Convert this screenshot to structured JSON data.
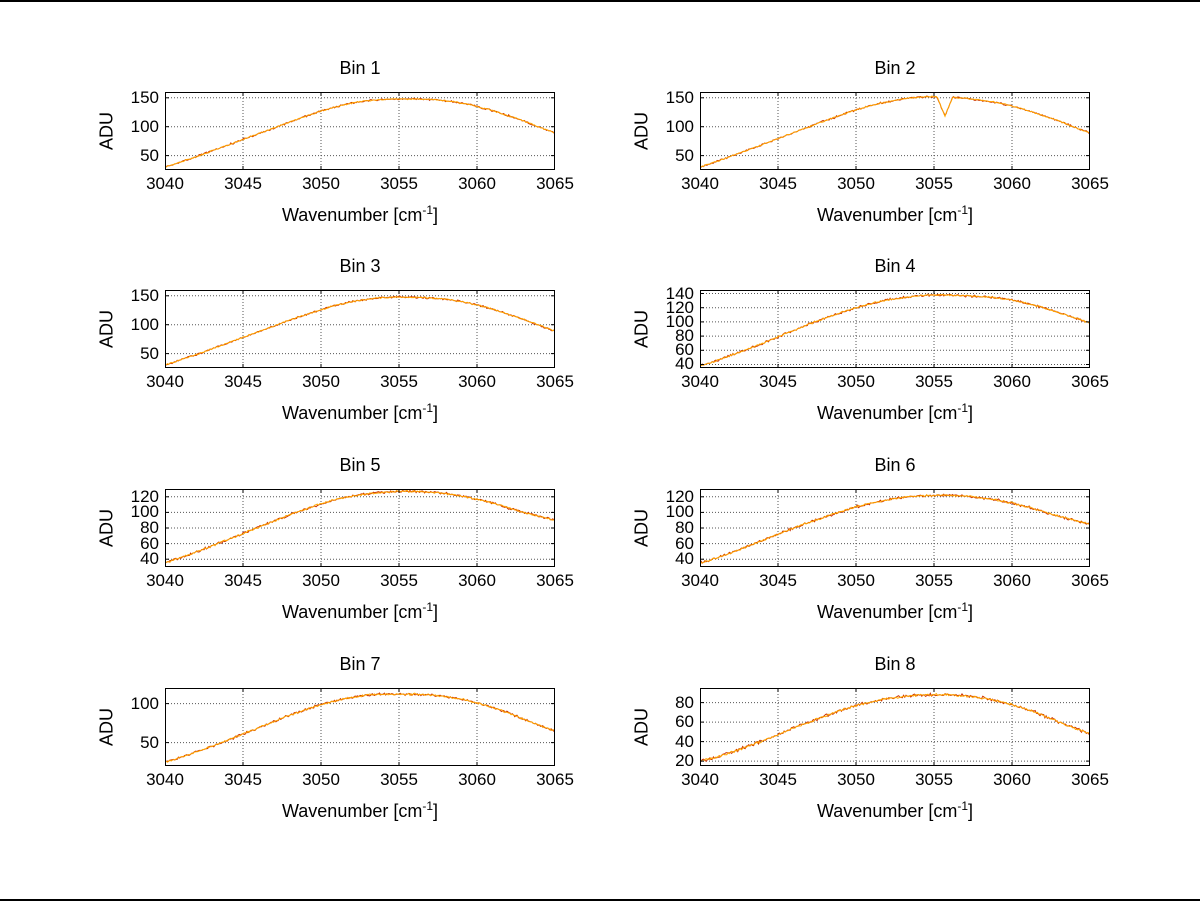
{
  "figure": {
    "background": "#ffffff",
    "border_color": "#000000",
    "grid_color": "#555555",
    "axis_color": "#000000",
    "series_colors": [
      "#cc3300",
      "#ffa500"
    ],
    "noise_amplitudes": [
      2.0,
      1.4
    ]
  },
  "labels": {
    "ylabel": "ADU",
    "xlabel_main": "Wavenumber [cm",
    "xlabel_sup": "-1",
    "xlabel_close": "]"
  },
  "axes_shared": {
    "x_start": 3040,
    "x_step": 1,
    "xlim": [
      3040,
      3065
    ],
    "xticks": [
      3040,
      3045,
      3050,
      3055,
      3060,
      3065
    ],
    "grid": true
  },
  "chart_data": [
    {
      "type": "line",
      "title": "Bin 1",
      "ylim": [
        25,
        160
      ],
      "yticks": [
        50,
        100,
        150
      ],
      "values": [
        30,
        39,
        48,
        58,
        68,
        78,
        88,
        98,
        108,
        118,
        127,
        135,
        141,
        145,
        147,
        148,
        148,
        147,
        145,
        141,
        135,
        128,
        119,
        110,
        99,
        89
      ]
    },
    {
      "type": "line",
      "title": "Bin 2",
      "ylim": [
        25,
        160
      ],
      "yticks": [
        50,
        100,
        150
      ],
      "dip": {
        "x": 3055.7,
        "value": 118,
        "width": 0.5
      },
      "values": [
        30,
        39,
        49,
        59,
        69,
        79,
        90,
        100,
        110,
        120,
        129,
        137,
        143,
        148,
        151,
        152,
        151,
        149,
        146,
        142,
        136,
        128,
        119,
        110,
        99,
        89
      ]
    },
    {
      "type": "line",
      "title": "Bin 3",
      "ylim": [
        25,
        160
      ],
      "yticks": [
        50,
        100,
        150
      ],
      "values": [
        30,
        39,
        48,
        58,
        68,
        78,
        88,
        98,
        108,
        117,
        126,
        134,
        140,
        144,
        147,
        148,
        147,
        146,
        144,
        140,
        134,
        127,
        118,
        109,
        99,
        89
      ]
    },
    {
      "type": "line",
      "title": "Bin 4",
      "ylim": [
        35,
        145
      ],
      "yticks": [
        40,
        60,
        80,
        100,
        120,
        140
      ],
      "values": [
        38,
        45,
        53,
        61,
        70,
        79,
        88,
        97,
        105,
        113,
        120,
        126,
        131,
        134,
        137,
        138,
        138,
        137,
        136,
        134,
        131,
        126,
        120,
        113,
        106,
        98
      ]
    },
    {
      "type": "line",
      "title": "Bin 5",
      "ylim": [
        30,
        130
      ],
      "yticks": [
        40,
        60,
        80,
        100,
        120
      ],
      "values": [
        35,
        42,
        49,
        57,
        65,
        73,
        81,
        89,
        97,
        104,
        111,
        117,
        121,
        124,
        126,
        127,
        127,
        126,
        124,
        121,
        117,
        112,
        106,
        100,
        95,
        90
      ]
    },
    {
      "type": "line",
      "title": "Bin 6",
      "ylim": [
        30,
        130
      ],
      "yticks": [
        40,
        60,
        80,
        100,
        120
      ],
      "values": [
        35,
        41,
        48,
        56,
        64,
        72,
        80,
        87,
        94,
        101,
        107,
        112,
        116,
        119,
        121,
        122,
        122,
        121,
        119,
        116,
        112,
        107,
        101,
        95,
        90,
        85
      ]
    },
    {
      "type": "line",
      "title": "Bin 7",
      "ylim": [
        20,
        120
      ],
      "yticks": [
        50,
        100
      ],
      "values": [
        25,
        31,
        38,
        45,
        53,
        61,
        69,
        77,
        85,
        92,
        99,
        104,
        108,
        111,
        112,
        112,
        112,
        111,
        109,
        106,
        101,
        95,
        88,
        80,
        72,
        65
      ]
    },
    {
      "type": "line",
      "title": "Bin 8",
      "ylim": [
        15,
        95
      ],
      "yticks": [
        20,
        40,
        60,
        80
      ],
      "values": [
        20,
        24,
        29,
        35,
        41,
        47,
        54,
        60,
        66,
        72,
        77,
        81,
        84,
        86,
        88,
        88,
        88,
        87,
        85,
        82,
        78,
        73,
        67,
        60,
        54,
        48
      ]
    }
  ]
}
